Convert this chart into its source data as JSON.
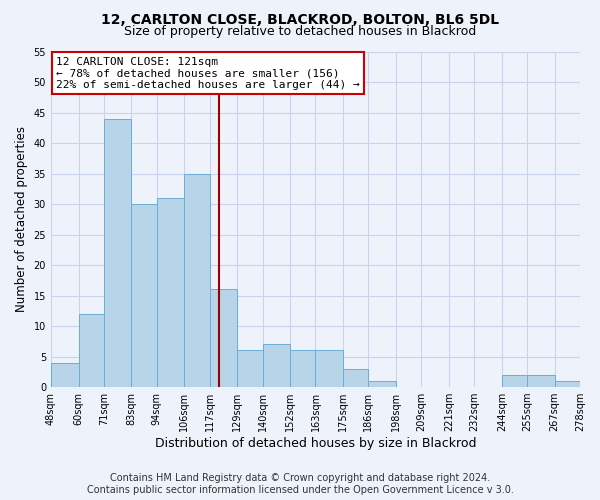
{
  "title1": "12, CARLTON CLOSE, BLACKROD, BOLTON, BL6 5DL",
  "title2": "Size of property relative to detached houses in Blackrod",
  "xlabel": "Distribution of detached houses by size in Blackrod",
  "ylabel": "Number of detached properties",
  "footer1": "Contains HM Land Registry data © Crown copyright and database right 2024.",
  "footer2": "Contains public sector information licensed under the Open Government Licence v 3.0.",
  "bin_edges": [
    48,
    60,
    71,
    83,
    94,
    106,
    117,
    129,
    140,
    152,
    163,
    175,
    186,
    198,
    209,
    221,
    232,
    244,
    255,
    267,
    278
  ],
  "bin_counts": [
    4,
    12,
    44,
    30,
    31,
    35,
    16,
    6,
    7,
    6,
    6,
    3,
    1,
    0,
    0,
    0,
    0,
    2,
    2,
    1
  ],
  "bar_color": "#b8d4e8",
  "bar_edge_color": "#6aaed6",
  "property_size": 121,
  "vline_color": "#990000",
  "annotation_line1": "12 CARLTON CLOSE: 121sqm",
  "annotation_line2": "← 78% of detached houses are smaller (156)",
  "annotation_line3": "22% of semi-detached houses are larger (44) →",
  "annotation_box_edge": "#cc0000",
  "ylim": [
    0,
    55
  ],
  "yticks": [
    0,
    5,
    10,
    15,
    20,
    25,
    30,
    35,
    40,
    45,
    50,
    55
  ],
  "tick_labels": [
    "48sqm",
    "60sqm",
    "71sqm",
    "83sqm",
    "94sqm",
    "106sqm",
    "117sqm",
    "129sqm",
    "140sqm",
    "152sqm",
    "163sqm",
    "175sqm",
    "186sqm",
    "198sqm",
    "209sqm",
    "221sqm",
    "232sqm",
    "244sqm",
    "255sqm",
    "267sqm",
    "278sqm"
  ],
  "bg_color": "#eef2fb",
  "grid_color": "#c8d4ee",
  "title1_fontsize": 10,
  "title2_fontsize": 9,
  "xlabel_fontsize": 9,
  "ylabel_fontsize": 8.5,
  "tick_fontsize": 7,
  "annotation_fontsize": 8,
  "footer_fontsize": 7
}
